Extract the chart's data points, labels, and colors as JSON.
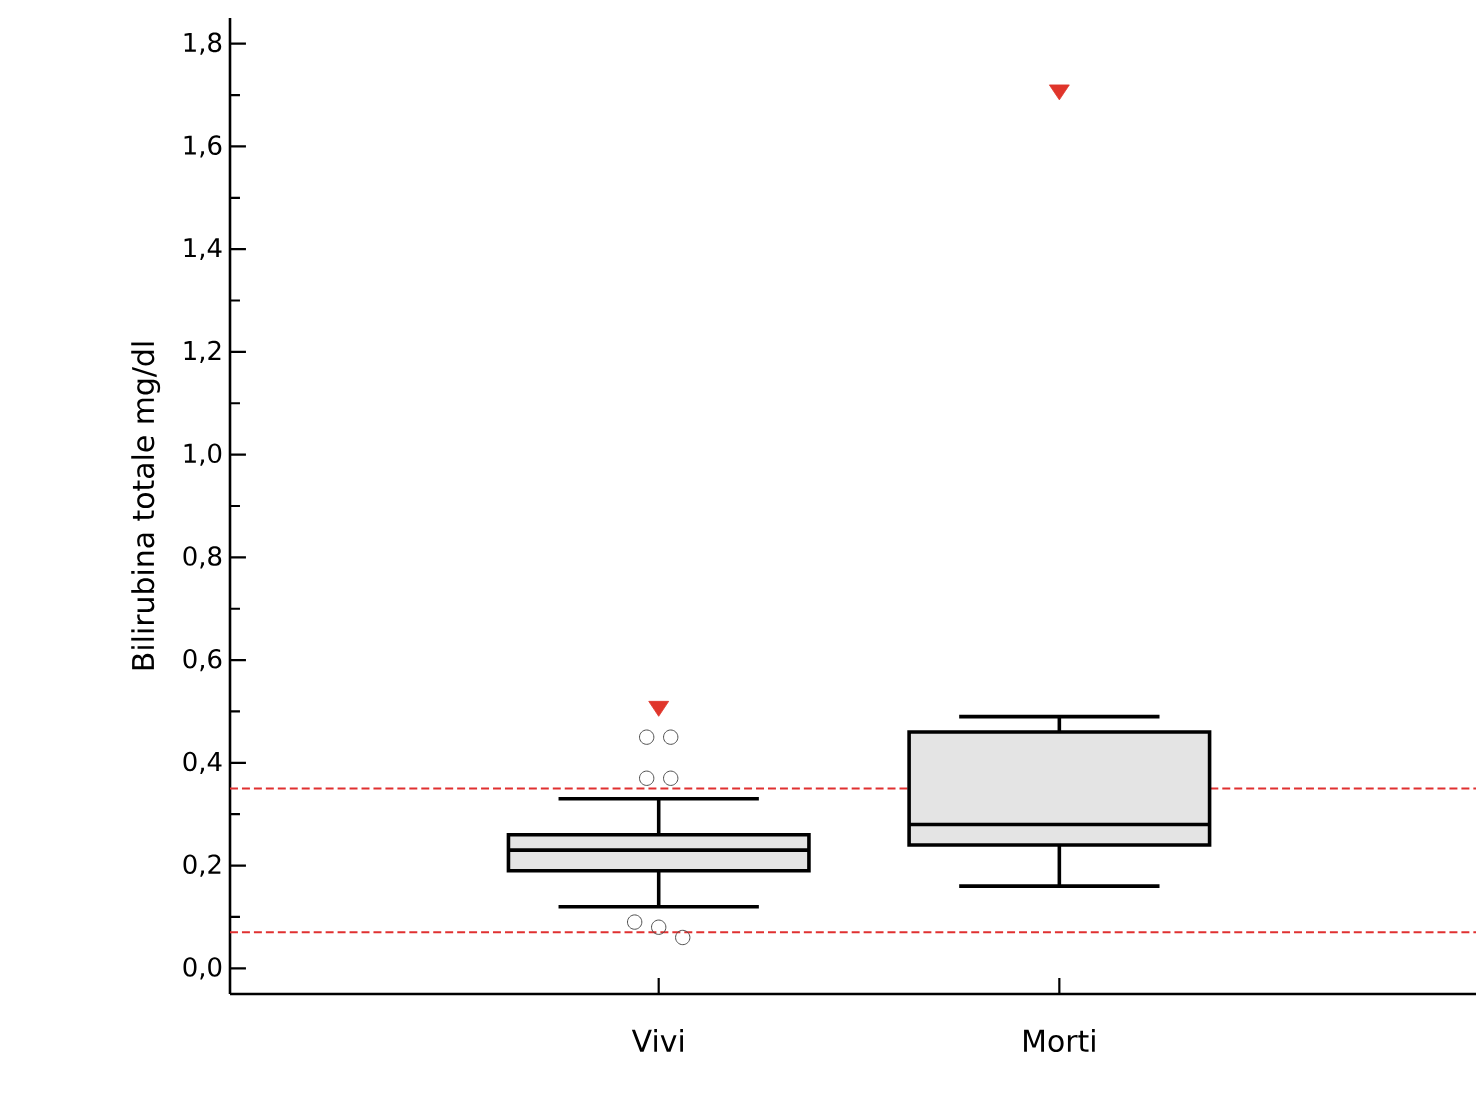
{
  "chart_data": {
    "type": "box",
    "ylabel": "Bilirubina totale mg/dl",
    "categories": [
      "Vivi",
      "Morti"
    ],
    "series": [
      {
        "type": "box",
        "color": "#e4e4e4",
        "boxes": [
          {
            "low": 0.12,
            "q1": 0.19,
            "median": 0.23,
            "q3": 0.26,
            "high": 0.33,
            "outliers": [
              0.45,
              0.45,
              0.37,
              0.37,
              0.09,
              0.08,
              0.06
            ]
          },
          {
            "low": 0.16,
            "q1": 0.24,
            "median": 0.28,
            "q3": 0.46,
            "high": 0.49
          }
        ]
      },
      {
        "type": "scatter",
        "x": [
          "Vivi",
          "Morti"
        ],
        "values": [
          0.51,
          1.71
        ],
        "color": "#e0352b",
        "marker": "triangle"
      }
    ],
    "ylim": [
      -0.05,
      1.85
    ],
    "yticks": [
      {
        "value": 0,
        "label": "0,0"
      },
      {
        "value": 0.2,
        "label": "0,2"
      },
      {
        "value": 0.4,
        "label": "0,4"
      },
      {
        "value": 0.6,
        "label": "0,6"
      },
      {
        "value": 0.8,
        "label": "0,8"
      },
      {
        "value": 1.0,
        "label": "1,0"
      },
      {
        "value": 1.2,
        "label": "1,2"
      },
      {
        "value": 1.4,
        "label": "1,4"
      },
      {
        "value": 1.6,
        "label": "1,6"
      },
      {
        "value": 1.8,
        "label": "1,8"
      }
    ],
    "ref_lines": [
      {
        "axis": "y",
        "value": 0.35,
        "color": "#e03030",
        "line_style": "dashed"
      },
      {
        "axis": "y",
        "value": 0.07,
        "color": "#e03030",
        "line_style": "dashed"
      }
    ],
    "line_style": "solid"
  }
}
